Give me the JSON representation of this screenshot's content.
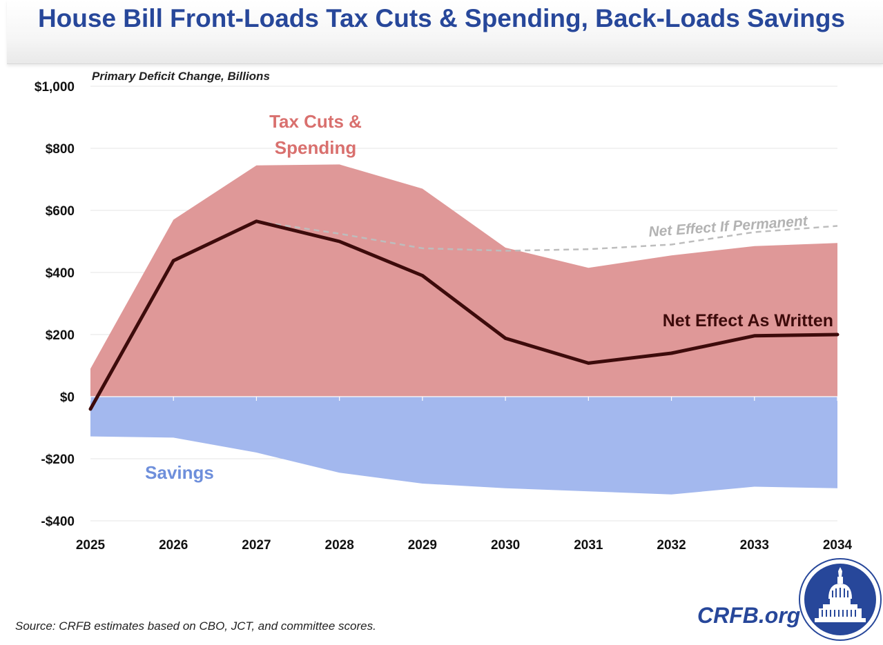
{
  "page": {
    "title": "House Bill Front-Loads Tax Cuts & Spending, Back-Loads Savings",
    "source": "Source: CRFB estimates based on CBO, JCT, and committee scores.",
    "brand": "CRFB.org",
    "logo_icon": "capitol-dome-seal-icon"
  },
  "colors": {
    "title": "#27479a",
    "tax_cuts_fill": "#df9898",
    "tax_cuts_label": "#d9706e",
    "savings_fill": "#a3b8ee",
    "savings_label": "#6e8fdb",
    "net_line": "#3d0b0b",
    "permanent_line": "#bdbdbd",
    "grid": "#e4e4e4"
  },
  "chart_data": {
    "type": "area",
    "ylabel": "Primary Deficit Change, Billions",
    "xlabel": "",
    "x": [
      2025,
      2026,
      2027,
      2028,
      2029,
      2030,
      2031,
      2032,
      2033,
      2034
    ],
    "x_tick_labels": [
      "2025",
      "2026",
      "2027",
      "2028",
      "2029",
      "2030",
      "2031",
      "2032",
      "2033",
      "2034"
    ],
    "ylim": [
      -400,
      1000
    ],
    "y_ticks": [
      -400,
      -200,
      0,
      200,
      400,
      600,
      800,
      1000
    ],
    "y_tick_labels": [
      "-$400",
      "-$200",
      "$0",
      "$200",
      "$400",
      "$600",
      "$800",
      "$1,000"
    ],
    "grid": true,
    "series": [
      {
        "name": "Tax Cuts & Spending",
        "label_lines": [
          "Tax Cuts &",
          "Spending"
        ],
        "kind": "area",
        "values": [
          90,
          570,
          745,
          748,
          670,
          480,
          415,
          455,
          485,
          495
        ]
      },
      {
        "name": "Savings",
        "label_lines": [
          "Savings"
        ],
        "kind": "area",
        "values": [
          -128,
          -132,
          -180,
          -245,
          -280,
          -295,
          -305,
          -315,
          -290,
          -295
        ]
      },
      {
        "name": "Net Effect As Written",
        "label_lines": [
          "Net Effect As Written"
        ],
        "kind": "line",
        "values": [
          -40,
          438,
          565,
          500,
          390,
          188,
          108,
          140,
          196,
          200
        ]
      },
      {
        "name": "Net Effect If Permanent",
        "label_lines": [
          "Net Effect If Permanent"
        ],
        "kind": "dashed-line",
        "x": [
          2027,
          2028,
          2029,
          2030,
          2031,
          2032,
          2033,
          2034
        ],
        "values": [
          565,
          525,
          478,
          470,
          475,
          490,
          530,
          550
        ]
      }
    ]
  }
}
